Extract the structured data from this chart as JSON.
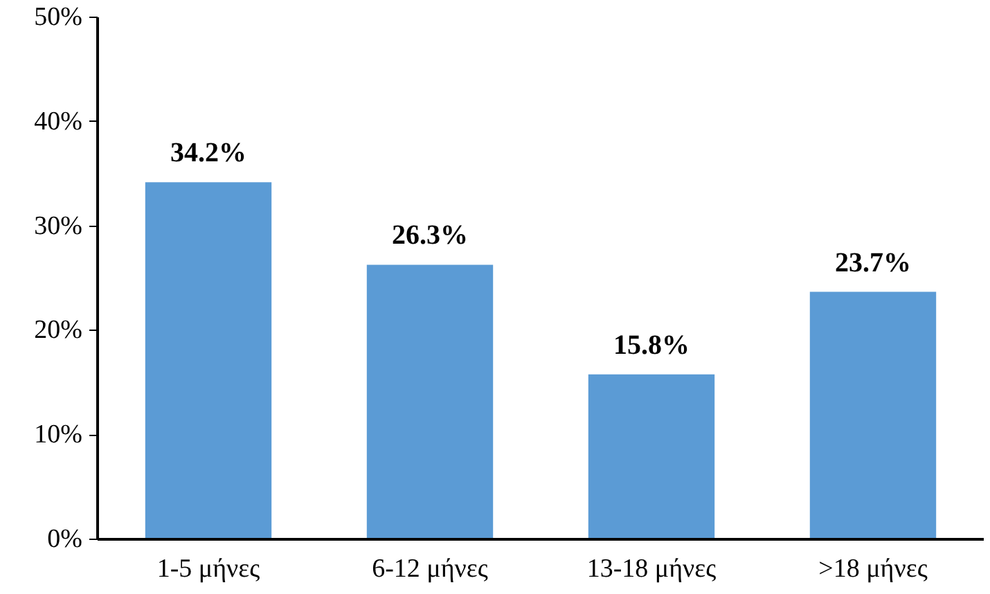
{
  "chart_data": {
    "type": "bar",
    "categories": [
      "1-5 μήνες",
      "6-12 μήνες",
      "13-18 μήνες",
      ">18 μήνες"
    ],
    "values": [
      34.2,
      26.3,
      15.8,
      23.7
    ],
    "color": "#5b9bd5",
    "value_labels": [
      "34.2%",
      "26.3%",
      "15.8%",
      "23.7%"
    ],
    "ylim": [
      0,
      50
    ],
    "yticks": [
      {
        "value": 0,
        "label": "0%"
      },
      {
        "value": 10,
        "label": "10%"
      },
      {
        "value": 20,
        "label": "20%"
      },
      {
        "value": 30,
        "label": "30%"
      },
      {
        "value": 40,
        "label": "40%"
      },
      {
        "value": 50,
        "label": "50%"
      }
    ],
    "grid": false
  }
}
